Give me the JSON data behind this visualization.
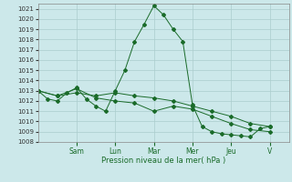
{
  "xlabel": "Pression niveau de la mer( hPa )",
  "background_color": "#cce8ea",
  "grid_color": "#aacccc",
  "line_color": "#1a6b2a",
  "ylim": [
    1008,
    1021.5
  ],
  "yticks": [
    1008,
    1009,
    1010,
    1011,
    1012,
    1013,
    1014,
    1015,
    1016,
    1017,
    1018,
    1019,
    1020,
    1021
  ],
  "day_labels": [
    "Sam",
    "Lun",
    "Mar",
    "Mer",
    "Jeu",
    "V"
  ],
  "day_positions": [
    24,
    48,
    72,
    96,
    120,
    144
  ],
  "xlim": [
    0,
    156
  ],
  "series1_x": [
    0,
    6,
    12,
    18,
    24,
    30,
    36,
    42,
    48,
    54,
    60,
    66,
    72,
    78,
    84,
    90,
    96,
    102,
    108,
    114,
    120,
    126,
    132,
    138,
    144
  ],
  "series1_y": [
    1013.0,
    1012.2,
    1012.0,
    1012.8,
    1013.3,
    1012.2,
    1011.5,
    1011.0,
    1013.0,
    1015.0,
    1017.8,
    1019.5,
    1021.3,
    1020.4,
    1019.0,
    1017.8,
    1011.6,
    1009.5,
    1009.0,
    1008.8,
    1008.7,
    1008.6,
    1008.5,
    1009.3,
    1009.5
  ],
  "series2_x": [
    0,
    12,
    24,
    36,
    48,
    60,
    72,
    84,
    96,
    108,
    120,
    132,
    144
  ],
  "series2_y": [
    1013.0,
    1012.5,
    1012.8,
    1012.5,
    1012.8,
    1012.5,
    1012.3,
    1012.0,
    1011.5,
    1011.0,
    1010.5,
    1009.8,
    1009.5
  ],
  "series3_x": [
    0,
    12,
    24,
    36,
    48,
    60,
    72,
    84,
    96,
    108,
    120,
    132,
    144
  ],
  "series3_y": [
    1013.0,
    1012.5,
    1013.2,
    1012.3,
    1012.0,
    1011.8,
    1011.0,
    1011.5,
    1011.2,
    1010.5,
    1009.8,
    1009.2,
    1009.0
  ]
}
